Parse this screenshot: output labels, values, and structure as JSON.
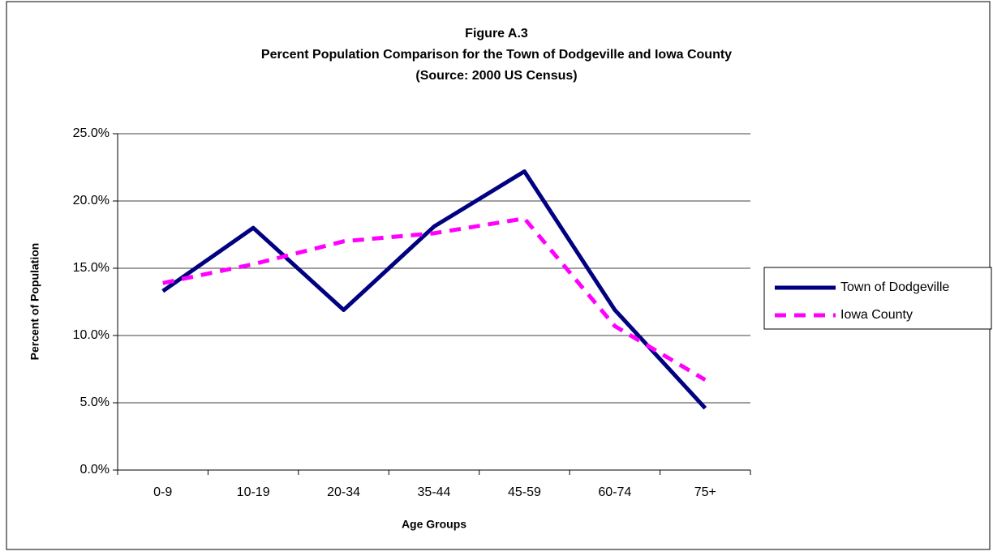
{
  "chart_data": {
    "type": "line",
    "title": "Figure A.3",
    "subtitle": "Percent Population Comparison for the Town of Dodgeville and Iowa County",
    "source": "(Source:  2000 US Census)",
    "x_label": "Age Groups",
    "y_label": "Percent of Population",
    "categories": [
      "0-9",
      "10-19",
      "20-34",
      "35-44",
      "45-59",
      "60-74",
      "75+"
    ],
    "series": [
      {
        "name": "Town of Dodgeville",
        "color": "#000080",
        "dash": false,
        "values": [
          13.3,
          18.0,
          11.9,
          18.1,
          22.2,
          11.9,
          4.6
        ]
      },
      {
        "name": "Iowa County",
        "color": "#ff00ff",
        "dash": true,
        "values": [
          13.9,
          15.3,
          17.0,
          17.6,
          18.7,
          10.7,
          6.7
        ]
      }
    ],
    "ylim": [
      0,
      25
    ],
    "yticks": [
      {
        "value": 0,
        "label": "0.0%"
      },
      {
        "value": 5,
        "label": "5.0%"
      },
      {
        "value": 10,
        "label": "10.0%"
      },
      {
        "value": 15,
        "label": "15.0%"
      },
      {
        "value": 20,
        "label": "20.0%"
      },
      {
        "value": 25,
        "label": "25.0%"
      }
    ],
    "grid": true,
    "legend": "right"
  }
}
